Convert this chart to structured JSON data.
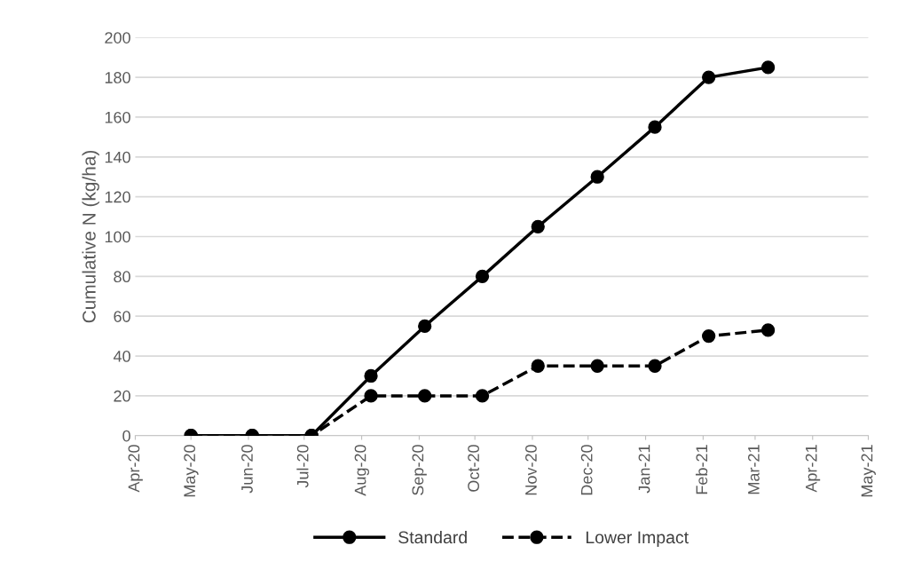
{
  "chart_data": {
    "type": "line",
    "ylabel": "Cumulative N (kg/ha)",
    "x": [
      "2020-05-01",
      "2020-06-03",
      "2020-07-05",
      "2020-08-06",
      "2020-09-04",
      "2020-10-05",
      "2020-11-04",
      "2020-12-06",
      "2021-01-06",
      "2021-02-04",
      "2021-03-08"
    ],
    "series": [
      {
        "name": "Standard",
        "color": "#000000",
        "line_style": "solid",
        "values": [
          0,
          0,
          0,
          30,
          55,
          80,
          105,
          130,
          155,
          180,
          185
        ]
      },
      {
        "name": "Lower Impact",
        "color": "#000000",
        "line_style": "dashed",
        "values": [
          0,
          0,
          0,
          20,
          20,
          20,
          35,
          35,
          35,
          50,
          53
        ]
      }
    ],
    "marker": "circle",
    "xlim": [
      "2020-04-01",
      "2021-05-01"
    ],
    "xticks": [
      {
        "value": "2020-04-01",
        "label": "Apr-20"
      },
      {
        "value": "2020-05-01",
        "label": "May-20"
      },
      {
        "value": "2020-06-01",
        "label": "Jun-20"
      },
      {
        "value": "2020-07-01",
        "label": "Jul-20"
      },
      {
        "value": "2020-08-01",
        "label": "Aug-20"
      },
      {
        "value": "2020-09-01",
        "label": "Sep-20"
      },
      {
        "value": "2020-10-01",
        "label": "Oct-20"
      },
      {
        "value": "2020-11-01",
        "label": "Nov-20"
      },
      {
        "value": "2020-12-01",
        "label": "Dec-20"
      },
      {
        "value": "2021-01-01",
        "label": "Jan-21"
      },
      {
        "value": "2021-02-01",
        "label": "Feb-21"
      },
      {
        "value": "2021-03-01",
        "label": "Mar-21"
      },
      {
        "value": "2021-04-01",
        "label": "Apr-21"
      },
      {
        "value": "2021-05-01",
        "label": "May-21"
      }
    ],
    "ylim": [
      0,
      200
    ],
    "yticks": [
      0,
      20,
      40,
      60,
      80,
      100,
      120,
      140,
      160,
      180,
      200
    ],
    "grid": "y",
    "legend": "bottom"
  }
}
